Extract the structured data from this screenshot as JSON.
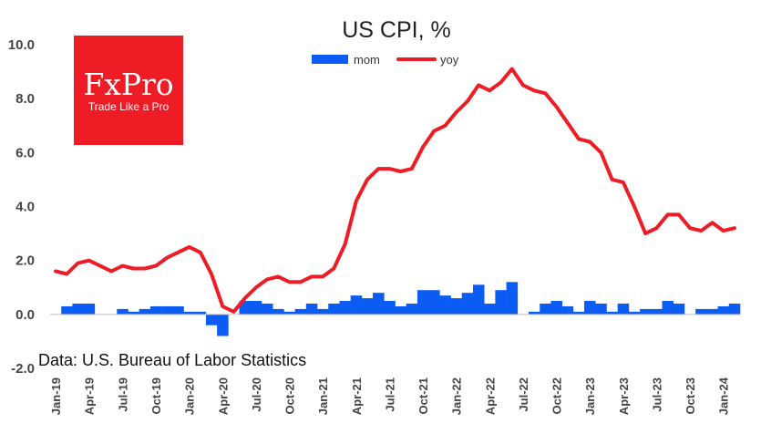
{
  "logo": {
    "name": "FxPro",
    "tagline": "Trade Like a Pro",
    "color": "#ee1c25"
  },
  "source": "Data: U.S. Bureau of Labor Statistics",
  "colors": {
    "mom": "#0a5cf5",
    "yoy": "#ee1c25"
  },
  "chart_data": {
    "type": "bar+line",
    "title": "US CPI, %",
    "ylim": [
      -2,
      10
    ],
    "yticks": [
      "10.0",
      "8.0",
      "6.0",
      "4.0",
      "2.0",
      "0.0",
      "-2.0"
    ],
    "ytick_values": [
      10,
      8,
      6,
      4,
      2,
      0,
      -2
    ],
    "x": [
      "Jan-19",
      "Feb-19",
      "Mar-19",
      "Apr-19",
      "May-19",
      "Jun-19",
      "Jul-19",
      "Aug-19",
      "Sep-19",
      "Oct-19",
      "Nov-19",
      "Dec-19",
      "Jan-20",
      "Feb-20",
      "Mar-20",
      "Apr-20",
      "May-20",
      "Jun-20",
      "Jul-20",
      "Aug-20",
      "Sep-20",
      "Oct-20",
      "Nov-20",
      "Dec-20",
      "Jan-21",
      "Feb-21",
      "Mar-21",
      "Apr-21",
      "May-21",
      "Jun-21",
      "Jul-21",
      "Aug-21",
      "Sep-21",
      "Oct-21",
      "Nov-21",
      "Dec-21",
      "Jan-22",
      "Feb-22",
      "Mar-22",
      "Apr-22",
      "May-22",
      "Jun-22",
      "Jul-22",
      "Aug-22",
      "Sep-22",
      "Oct-22",
      "Nov-22",
      "Dec-22",
      "Jan-23",
      "Feb-23",
      "Mar-23",
      "Apr-23",
      "May-23",
      "Jun-23",
      "Jul-23",
      "Aug-23",
      "Sep-23",
      "Oct-23",
      "Nov-23",
      "Dec-23",
      "Jan-24",
      "Feb-24"
    ],
    "xticks": [
      "Jan-19",
      "Apr-19",
      "Jul-19",
      "Oct-19",
      "Jan-20",
      "Apr-20",
      "Jul-20",
      "Oct-20",
      "Jan-21",
      "Apr-21",
      "Jul-21",
      "Oct-21",
      "Jan-22",
      "Apr-22",
      "Jul-22",
      "Oct-22",
      "Jan-23",
      "Apr-23",
      "Jul-23",
      "Oct-23",
      "Jan-24"
    ],
    "series": [
      {
        "name": "mom",
        "type": "bar",
        "values": [
          0.0,
          0.3,
          0.4,
          0.4,
          0.0,
          0.0,
          0.2,
          0.1,
          0.2,
          0.3,
          0.3,
          0.3,
          0.1,
          0.1,
          -0.4,
          -0.8,
          0.0,
          0.5,
          0.5,
          0.4,
          0.2,
          0.1,
          0.2,
          0.4,
          0.2,
          0.4,
          0.5,
          0.7,
          0.6,
          0.8,
          0.5,
          0.3,
          0.4,
          0.9,
          0.9,
          0.7,
          0.6,
          0.8,
          1.1,
          0.4,
          0.9,
          1.2,
          0.0,
          0.1,
          0.4,
          0.5,
          0.3,
          0.1,
          0.5,
          0.4,
          0.1,
          0.4,
          0.1,
          0.2,
          0.2,
          0.5,
          0.4,
          0.0,
          0.2,
          0.2,
          0.3,
          0.4
        ]
      },
      {
        "name": "yoy",
        "type": "line",
        "values": [
          1.6,
          1.5,
          1.9,
          2.0,
          1.8,
          1.6,
          1.8,
          1.7,
          1.7,
          1.8,
          2.1,
          2.3,
          2.5,
          2.3,
          1.5,
          0.3,
          0.1,
          0.6,
          1.0,
          1.3,
          1.4,
          1.2,
          1.2,
          1.4,
          1.4,
          1.7,
          2.6,
          4.2,
          5.0,
          5.4,
          5.4,
          5.3,
          5.4,
          6.2,
          6.8,
          7.0,
          7.5,
          7.9,
          8.5,
          8.3,
          8.6,
          9.1,
          8.5,
          8.3,
          8.2,
          7.7,
          7.1,
          6.5,
          6.4,
          6.0,
          5.0,
          4.9,
          4.0,
          3.0,
          3.2,
          3.7,
          3.7,
          3.2,
          3.1,
          3.4,
          3.1,
          3.2
        ]
      }
    ],
    "legend": [
      "mom",
      "yoy"
    ]
  }
}
